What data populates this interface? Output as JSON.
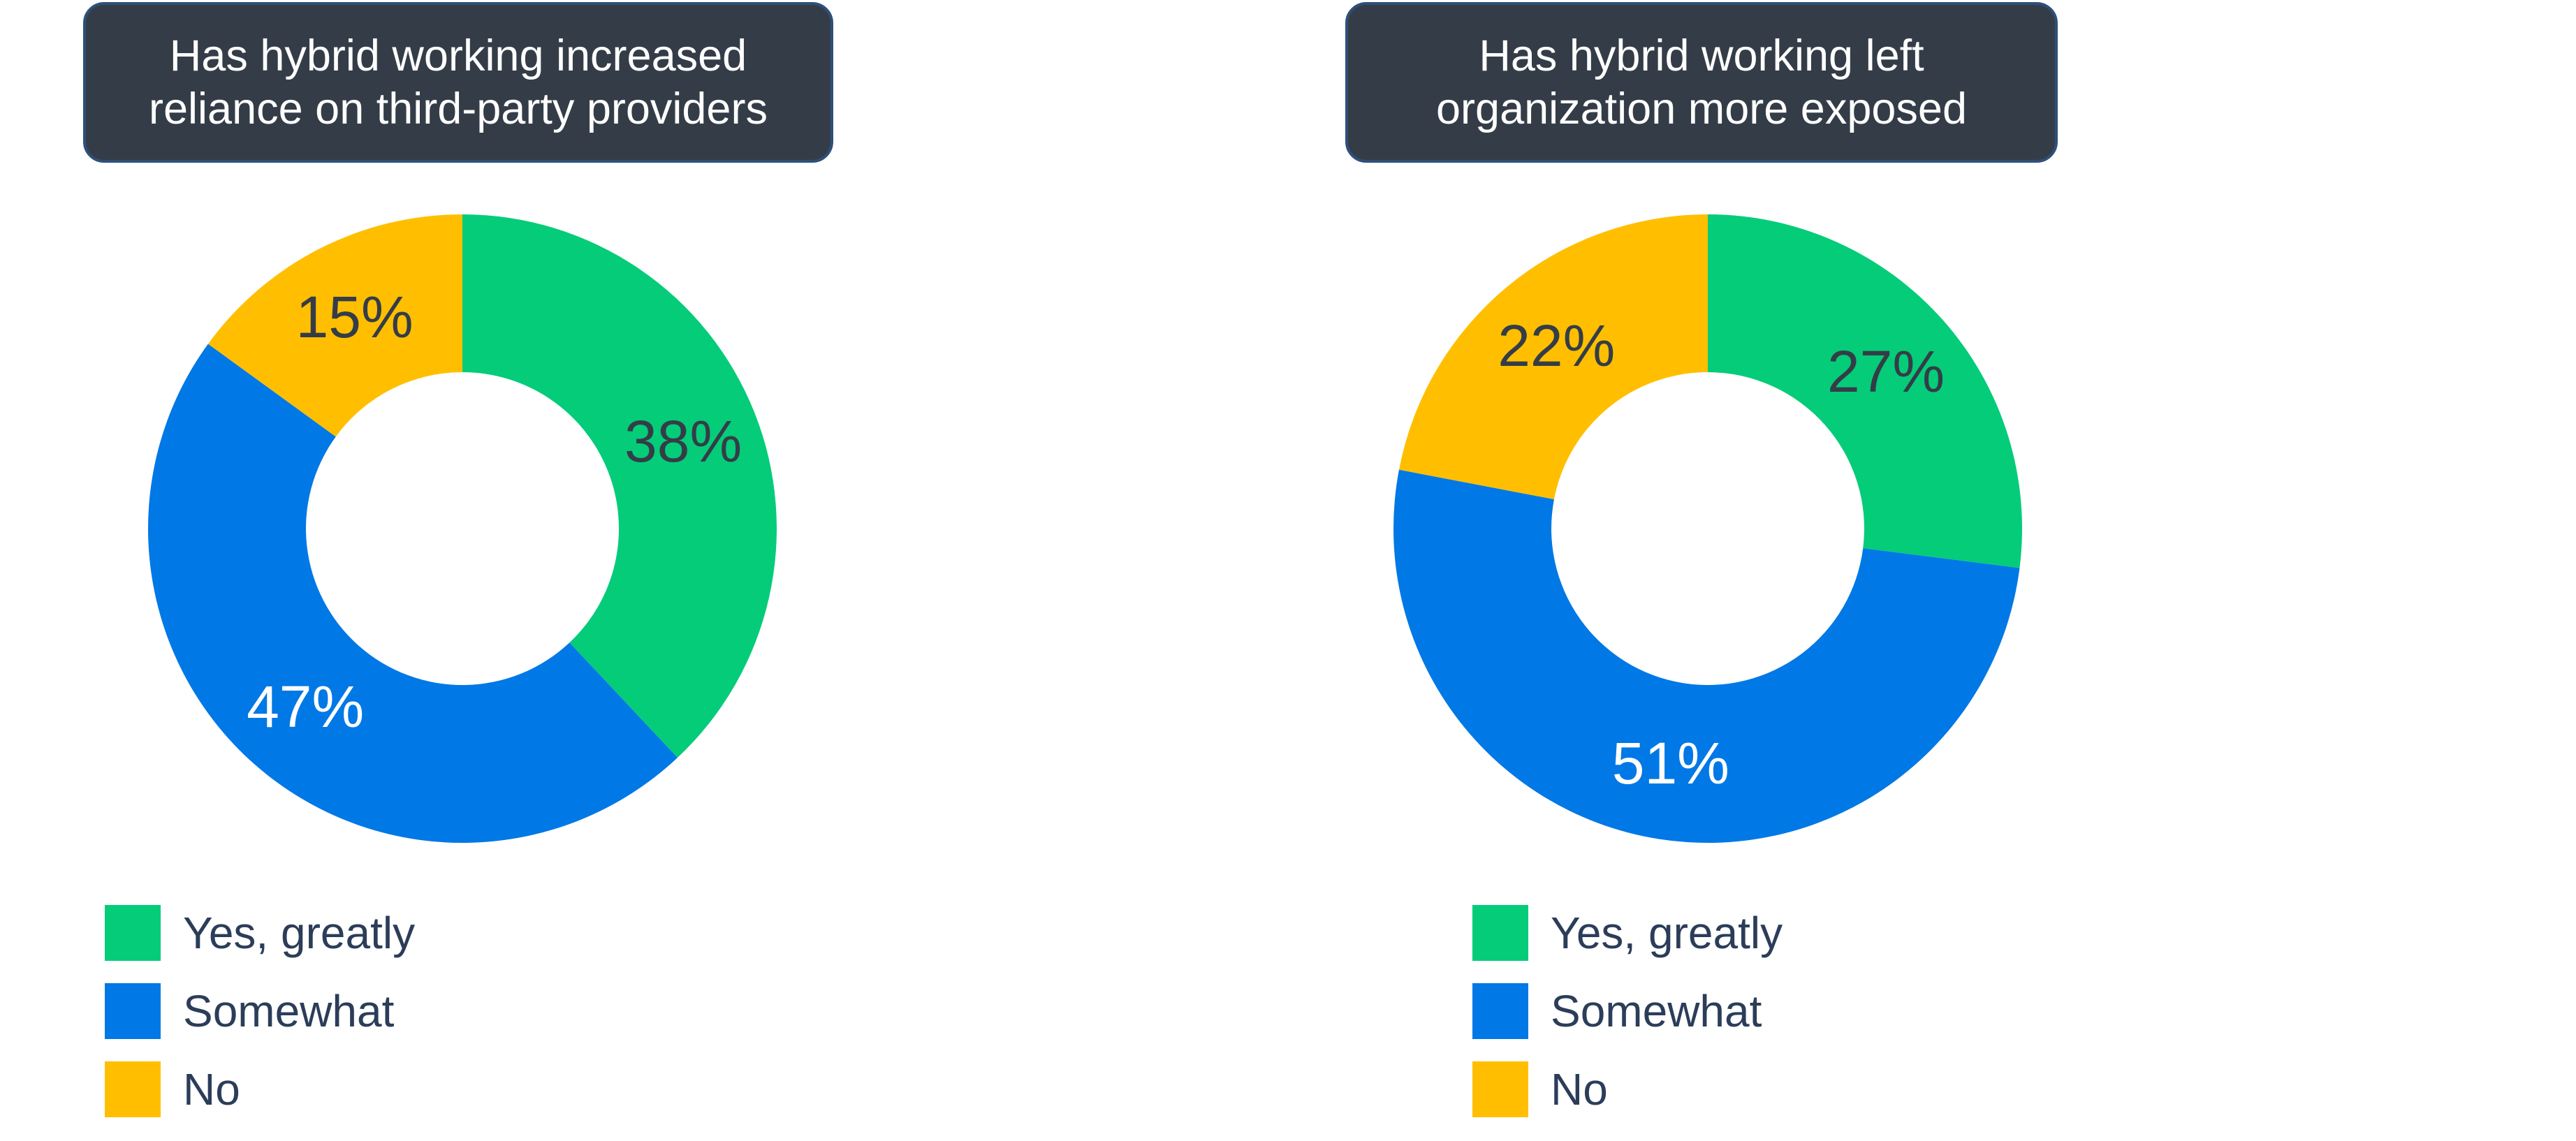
{
  "colors": {
    "yes_greatly": "#05cc79",
    "somewhat": "#0078e6",
    "no": "#ffbf00"
  },
  "chart_data": [
    {
      "type": "pie",
      "title": "Has hybrid working increased\nreliance on third-party providers",
      "categories": [
        "Yes, greatly",
        "Somewhat",
        "No"
      ],
      "values": [
        38,
        47,
        15
      ],
      "labels": [
        "38%",
        "47%",
        "15%"
      ],
      "label_colors": [
        "#343d47",
        "#ffffff",
        "#343d47"
      ],
      "legend_position": "bottom-left"
    },
    {
      "type": "pie",
      "title": "Has hybrid working left\norganization more exposed",
      "categories": [
        "Yes, greatly",
        "Somewhat",
        "No"
      ],
      "values": [
        27,
        51,
        22
      ],
      "labels": [
        "27%",
        "51%",
        "22%"
      ],
      "label_colors": [
        "#343d47",
        "#ffffff",
        "#343d47"
      ],
      "legend_position": "bottom-left"
    }
  ]
}
